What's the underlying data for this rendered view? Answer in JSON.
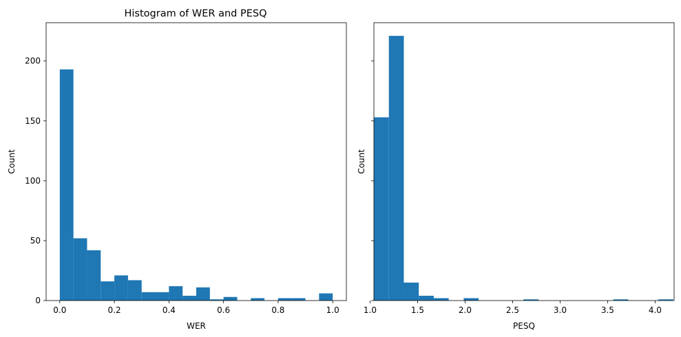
{
  "chart_data": [
    {
      "type": "bar",
      "title": "Histogram of WER and PESQ",
      "xlabel": "WER",
      "ylabel": "Count",
      "xlim": [
        -0.05,
        1.05
      ],
      "ylim": [
        0,
        232
      ],
      "xticks": [
        0.0,
        0.2,
        0.4,
        0.6,
        0.8,
        1.0
      ],
      "xtick_labels": [
        "0.0",
        "0.2",
        "0.4",
        "0.6",
        "0.8",
        "1.0"
      ],
      "yticks": [
        0,
        50,
        100,
        150,
        200
      ],
      "ytick_labels": [
        "0",
        "50",
        "100",
        "150",
        "200"
      ],
      "bin_edges": [
        0.0,
        0.05,
        0.1,
        0.15,
        0.2,
        0.25,
        0.3,
        0.35,
        0.4,
        0.45,
        0.5,
        0.55,
        0.6,
        0.65,
        0.7,
        0.75,
        0.8,
        0.85,
        0.9,
        0.95,
        1.0
      ],
      "values": [
        193,
        52,
        42,
        16,
        21,
        17,
        7,
        7,
        12,
        4,
        11,
        1,
        3,
        0,
        2,
        0,
        2,
        2,
        0,
        6
      ],
      "color": "#1f77b4"
    },
    {
      "type": "bar",
      "title": "",
      "xlabel": "PESQ",
      "ylabel": "Count",
      "xlim": [
        1.04,
        4.2
      ],
      "ylim": [
        0,
        232
      ],
      "xticks": [
        1.0,
        1.5,
        2.0,
        2.5,
        3.0,
        3.5,
        4.0
      ],
      "xtick_labels": [
        "1.0",
        "1.5",
        "2.0",
        "2.5",
        "3.0",
        "3.5",
        "4.0"
      ],
      "yticks": [
        0,
        50,
        100,
        150,
        200
      ],
      "ytick_labels": [
        "",
        "",
        "",
        "",
        ""
      ],
      "bin_edges": [
        1.04,
        1.1975,
        1.355,
        1.5125,
        1.67,
        1.8275,
        1.985,
        2.1425,
        2.3,
        2.4575,
        2.615,
        2.7725,
        2.93,
        3.0875,
        3.245,
        3.4025,
        3.56,
        3.7175,
        3.875,
        4.0325,
        4.19
      ],
      "values": [
        153,
        221,
        15,
        4,
        2,
        0,
        2,
        0,
        0,
        0,
        1,
        0,
        0,
        0,
        0,
        0,
        1,
        0,
        0,
        1
      ],
      "color": "#1f77b4"
    }
  ]
}
